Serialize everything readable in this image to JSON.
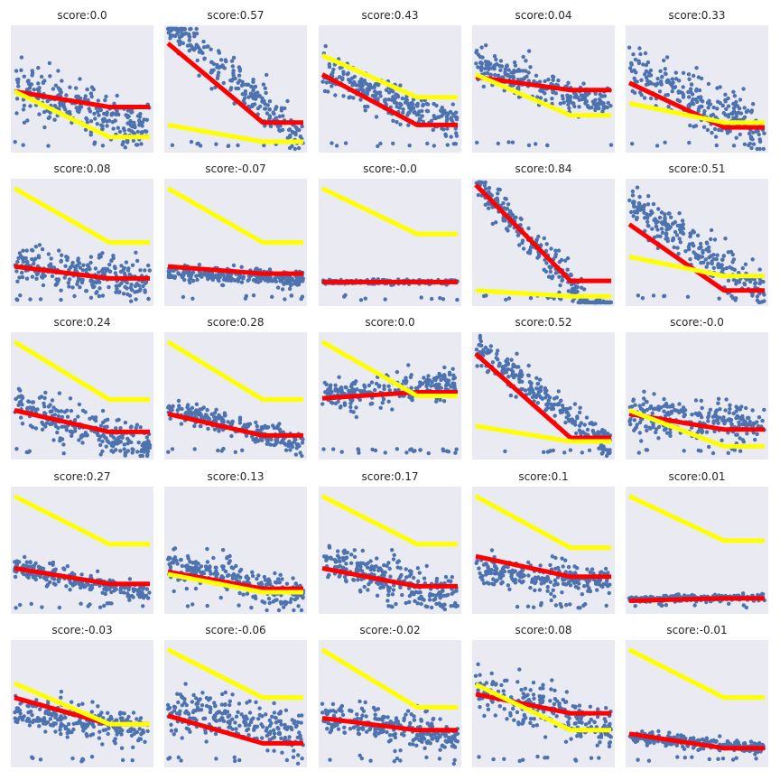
{
  "chart_data": [
    {
      "type": "scatter",
      "title": "score:0.0",
      "points": {
        "center": [
          0.3,
          0.62
        ],
        "slope": -0.35,
        "spread": 0.55,
        "hide_x": []
      },
      "series": [
        {
          "color": "#ff0000",
          "y": [
            0.48,
            0.35,
            0.35
          ]
        },
        {
          "color": "#ffff00",
          "y": [
            0.48,
            0.1,
            0.1
          ]
        }
      ]
    },
    {
      "type": "scatter",
      "title": "score:0.57",
      "points": {
        "center": [
          0.55,
          0.52
        ],
        "slope": -0.95,
        "spread": 0.45,
        "hide_x": []
      },
      "series": [
        {
          "color": "#ff0000",
          "y": [
            0.88,
            0.22,
            0.22
          ]
        },
        {
          "color": "#ffff00",
          "y": [
            0.2,
            0.06,
            0.06
          ]
        }
      ]
    },
    {
      "type": "scatter",
      "title": "score:0.43",
      "points": {
        "center": [
          0.4,
          0.55
        ],
        "slope": -0.45,
        "spread": 0.4,
        "hide_x": []
      },
      "series": [
        {
          "color": "#ff0000",
          "y": [
            0.62,
            0.2,
            0.2
          ]
        },
        {
          "color": "#ffff00",
          "y": [
            0.78,
            0.43,
            0.43
          ]
        }
      ]
    },
    {
      "type": "scatter",
      "title": "score:0.04",
      "points": {
        "center": [
          0.48,
          0.62
        ],
        "slope": -0.35,
        "spread": 0.4,
        "hide_x": []
      },
      "series": [
        {
          "color": "#ff0000",
          "y": [
            0.6,
            0.49,
            0.49
          ]
        },
        {
          "color": "#ffff00",
          "y": [
            0.62,
            0.28,
            0.28
          ]
        }
      ]
    },
    {
      "type": "scatter",
      "title": "score:0.33",
      "points": {
        "center": [
          0.4,
          0.5
        ],
        "slope": -0.55,
        "spread": 0.55,
        "hide_x": []
      },
      "series": [
        {
          "color": "#ff0000",
          "y": [
            0.55,
            0.18,
            0.18
          ]
        },
        {
          "color": "#ffff00",
          "y": [
            0.38,
            0.22,
            0.22
          ]
        }
      ]
    },
    {
      "type": "scatter",
      "title": "score:0.08",
      "points": {
        "center": [
          0.25,
          0.5
        ],
        "slope": -0.18,
        "spread": 0.45,
        "hide_x": []
      },
      "series": [
        {
          "color": "#ff0000",
          "y": [
            0.3,
            0.2,
            0.2
          ]
        },
        {
          "color": "#ffff00",
          "y": [
            0.95,
            0.5,
            0.5
          ]
        }
      ]
    },
    {
      "type": "scatter",
      "title": "score:-0.07",
      "points": {
        "center": [
          0.22,
          0.5
        ],
        "slope": -0.04,
        "spread": 0.18,
        "hide_x": []
      },
      "series": [
        {
          "color": "#ff0000",
          "y": [
            0.3,
            0.24,
            0.24
          ]
        },
        {
          "color": "#ffff00",
          "y": [
            0.95,
            0.5,
            0.5
          ]
        }
      ]
    },
    {
      "type": "scatter",
      "title": "score:-0.0",
      "points": {
        "center": [
          0.17,
          0.5
        ],
        "slope": 0.0,
        "spread": 0.05,
        "hide_x": []
      },
      "series": [
        {
          "color": "#ff0000",
          "y": [
            0.17,
            0.17,
            0.17
          ]
        },
        {
          "color": "#ffff00",
          "y": [
            0.95,
            0.57,
            0.57
          ]
        }
      ]
    },
    {
      "type": "scatter",
      "title": "score:0.84",
      "points": {
        "center": [
          0.45,
          0.45
        ],
        "slope": -1.2,
        "spread": 0.4,
        "hide_x": []
      },
      "series": [
        {
          "color": "#ff0000",
          "y": [
            0.98,
            0.18,
            0.18
          ]
        },
        {
          "color": "#ffff00",
          "y": [
            0.1,
            0.05,
            0.05
          ]
        }
      ]
    },
    {
      "type": "scatter",
      "title": "score:0.51",
      "points": {
        "center": [
          0.45,
          0.5
        ],
        "slope": -0.75,
        "spread": 0.5,
        "hide_x": []
      },
      "series": [
        {
          "color": "#ff0000",
          "y": [
            0.65,
            0.1,
            0.1
          ]
        },
        {
          "color": "#ffff00",
          "y": [
            0.38,
            0.22,
            0.22
          ]
        }
      ]
    },
    {
      "type": "scatter",
      "title": "score:0.24",
      "points": {
        "center": [
          0.25,
          0.5
        ],
        "slope": -0.35,
        "spread": 0.45,
        "hide_x": []
      },
      "series": [
        {
          "color": "#ff0000",
          "y": [
            0.38,
            0.2,
            0.2
          ]
        },
        {
          "color": "#ffff00",
          "y": [
            0.95,
            0.47,
            0.47
          ]
        }
      ]
    },
    {
      "type": "scatter",
      "title": "score:0.28",
      "points": {
        "center": [
          0.25,
          0.5
        ],
        "slope": -0.3,
        "spread": 0.25,
        "hide_x": []
      },
      "series": [
        {
          "color": "#ff0000",
          "y": [
            0.35,
            0.17,
            0.17
          ]
        },
        {
          "color": "#ffff00",
          "y": [
            0.95,
            0.47,
            0.47
          ]
        }
      ]
    },
    {
      "type": "scatter",
      "title": "score:0.0",
      "points": {
        "center": [
          0.55,
          0.5
        ],
        "slope": 0.1,
        "spread": 0.35,
        "hide_x": []
      },
      "series": [
        {
          "color": "#ff0000",
          "y": [
            0.48,
            0.53,
            0.53
          ]
        },
        {
          "color": "#ffff00",
          "y": [
            0.95,
            0.5,
            0.5
          ]
        }
      ]
    },
    {
      "type": "scatter",
      "title": "score:0.52",
      "points": {
        "center": [
          0.5,
          0.5
        ],
        "slope": -0.85,
        "spread": 0.35,
        "hide_x": []
      },
      "series": [
        {
          "color": "#ff0000",
          "y": [
            0.85,
            0.15,
            0.15
          ]
        },
        {
          "color": "#ffff00",
          "y": [
            0.25,
            0.12,
            0.12
          ]
        }
      ]
    },
    {
      "type": "scatter",
      "title": "score:-0.0",
      "points": {
        "center": [
          0.3,
          0.5
        ],
        "slope": -0.1,
        "spread": 0.45,
        "hide_x": []
      },
      "series": [
        {
          "color": "#ff0000",
          "y": [
            0.35,
            0.22,
            0.22
          ]
        },
        {
          "color": "#ffff00",
          "y": [
            0.38,
            0.08,
            0.08
          ]
        }
      ]
    },
    {
      "type": "scatter",
      "title": "score:0.27",
      "points": {
        "center": [
          0.25,
          0.5
        ],
        "slope": -0.22,
        "spread": 0.2,
        "hide_x": []
      },
      "series": [
        {
          "color": "#ff0000",
          "y": [
            0.35,
            0.22,
            0.22
          ]
        },
        {
          "color": "#ffff00",
          "y": [
            0.95,
            0.55,
            0.55
          ]
        }
      ]
    },
    {
      "type": "scatter",
      "title": "score:0.13",
      "points": {
        "center": [
          0.25,
          0.5
        ],
        "slope": -0.25,
        "spread": 0.4,
        "hide_x": []
      },
      "series": [
        {
          "color": "#ff0000",
          "y": [
            0.32,
            0.18,
            0.18
          ]
        },
        {
          "color": "#ffff00",
          "y": [
            0.3,
            0.15,
            0.15
          ]
        }
      ]
    },
    {
      "type": "scatter",
      "title": "score:0.17",
      "points": {
        "center": [
          0.25,
          0.5
        ],
        "slope": -0.3,
        "spread": 0.45,
        "hide_x": []
      },
      "series": [
        {
          "color": "#ff0000",
          "y": [
            0.35,
            0.2,
            0.2
          ]
        },
        {
          "color": "#ffff00",
          "y": [
            0.95,
            0.55,
            0.55
          ]
        }
      ]
    },
    {
      "type": "scatter",
      "title": "score:0.1",
      "points": {
        "center": [
          0.28,
          0.5
        ],
        "slope": -0.1,
        "spread": 0.35,
        "hide_x": []
      },
      "series": [
        {
          "color": "#ff0000",
          "y": [
            0.45,
            0.28,
            0.28
          ]
        },
        {
          "color": "#ffff00",
          "y": [
            0.95,
            0.52,
            0.52
          ]
        }
      ]
    },
    {
      "type": "scatter",
      "title": "score:0.01",
      "points": {
        "center": [
          0.1,
          0.5
        ],
        "slope": 0.02,
        "spread": 0.08,
        "hide_x": []
      },
      "series": [
        {
          "color": "#ff0000",
          "y": [
            0.08,
            0.1,
            0.1
          ]
        },
        {
          "color": "#ffff00",
          "y": [
            0.95,
            0.58,
            0.58
          ]
        }
      ]
    },
    {
      "type": "scatter",
      "title": "score:-0.03",
      "points": {
        "center": [
          0.35,
          0.5
        ],
        "slope": -0.15,
        "spread": 0.4,
        "hide_x": []
      },
      "series": [
        {
          "color": "#ff0000",
          "y": [
            0.55,
            0.33,
            0.33
          ]
        },
        {
          "color": "#ffff00",
          "y": [
            0.67,
            0.33,
            0.33
          ]
        }
      ]
    },
    {
      "type": "scatter",
      "title": "score:-0.06",
      "points": {
        "center": [
          0.35,
          0.5
        ],
        "slope": -0.2,
        "spread": 0.5,
        "hide_x": []
      },
      "series": [
        {
          "color": "#ff0000",
          "y": [
            0.4,
            0.17,
            0.17
          ]
        },
        {
          "color": "#ffff00",
          "y": [
            0.95,
            0.55,
            0.55
          ]
        }
      ]
    },
    {
      "type": "scatter",
      "title": "score:-0.02",
      "points": {
        "center": [
          0.3,
          0.5
        ],
        "slope": -0.2,
        "spread": 0.45,
        "hide_x": []
      },
      "series": [
        {
          "color": "#ff0000",
          "y": [
            0.38,
            0.28,
            0.28
          ]
        },
        {
          "color": "#ffff00",
          "y": [
            0.95,
            0.47,
            0.47
          ]
        }
      ]
    },
    {
      "type": "scatter",
      "title": "score:0.08",
      "points": {
        "center": [
          0.45,
          0.5
        ],
        "slope": -0.35,
        "spread": 0.5,
        "hide_x": []
      },
      "series": [
        {
          "color": "#ff0000",
          "y": [
            0.58,
            0.42,
            0.42
          ]
        },
        {
          "color": "#ffff00",
          "y": [
            0.66,
            0.28,
            0.28
          ]
        }
      ]
    },
    {
      "type": "scatter",
      "title": "score:-0.01",
      "points": {
        "center": [
          0.18,
          0.5
        ],
        "slope": -0.1,
        "spread": 0.15,
        "hide_x": []
      },
      "series": [
        {
          "color": "#ff0000",
          "y": [
            0.25,
            0.13,
            0.13
          ]
        },
        {
          "color": "#ffff00",
          "y": [
            0.95,
            0.55,
            0.55
          ]
        }
      ]
    }
  ]
}
